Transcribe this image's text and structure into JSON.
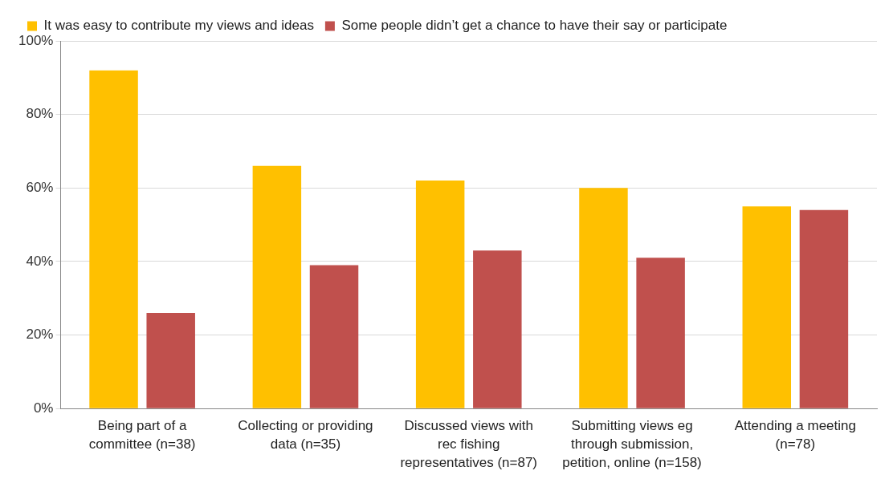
{
  "chart_data": {
    "type": "bar",
    "categories": [
      "Being part of a committee (n=38)",
      "Collecting or providing data (n=35)",
      "Discussed views with rec fishing representatives (n=87)",
      "Submitting views eg through submission, petition, online (n=158)",
      "Attending a meeting (n=78)"
    ],
    "series": [
      {
        "name": "It was easy to contribute my views and ideas",
        "color": "#ffc000",
        "values": [
          92,
          66,
          62,
          60,
          55
        ]
      },
      {
        "name": "Some people didn’t get a chance to have their say or participate",
        "color": "#c0504d",
        "values": [
          26,
          39,
          43,
          41,
          54
        ]
      }
    ],
    "ylim": [
      0,
      100
    ],
    "yticks": [
      {
        "value": 0,
        "label": "0%"
      },
      {
        "value": 20,
        "label": "20%"
      },
      {
        "value": 40,
        "label": "40%"
      },
      {
        "value": 60,
        "label": "60%"
      },
      {
        "value": 80,
        "label": "80%"
      },
      {
        "value": 100,
        "label": "100%"
      }
    ],
    "grid": "y",
    "legend": "top"
  }
}
